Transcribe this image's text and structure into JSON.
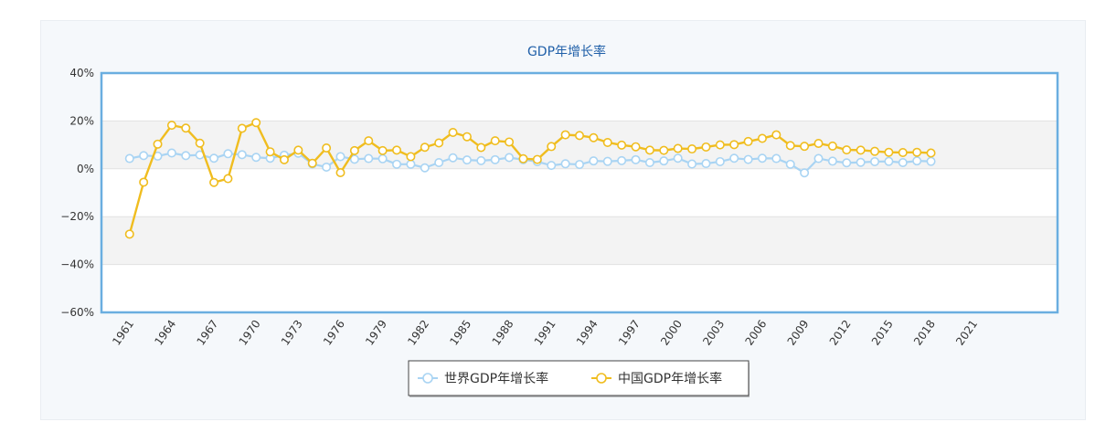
{
  "colors": {
    "world": "#a9d4f3",
    "china": "#f0bd1f",
    "frame": "#6aaee0",
    "title": "#1f5fa8",
    "band": "#f3f3f3"
  },
  "watermark": "sina",
  "chart_data": {
    "type": "line",
    "title": "GDP年增长率",
    "ylim": [
      -60,
      40
    ],
    "yticks": [
      "40%",
      "20%",
      "0%",
      "−20%",
      "−40%",
      "−60%"
    ],
    "ytick_values": [
      40,
      20,
      0,
      -20,
      -40,
      -60
    ],
    "xlim": [
      1959,
      2027
    ],
    "xticks": [
      "1961",
      "1964",
      "1967",
      "1970",
      "1973",
      "1976",
      "1979",
      "1982",
      "1985",
      "1988",
      "1991",
      "1994",
      "1997",
      "2000",
      "2003",
      "2006",
      "2009",
      "2012",
      "2015",
      "2018",
      "2021"
    ],
    "grid": true,
    "legend_position": "bottom-center",
    "x": [
      1961,
      1962,
      1963,
      1964,
      1965,
      1966,
      1967,
      1968,
      1969,
      1970,
      1971,
      1972,
      1973,
      1974,
      1975,
      1976,
      1977,
      1978,
      1979,
      1980,
      1981,
      1982,
      1983,
      1984,
      1985,
      1986,
      1987,
      1988,
      1989,
      1990,
      1991,
      1992,
      1993,
      1994,
      1995,
      1996,
      1997,
      1998,
      1999,
      2000,
      2001,
      2002,
      2003,
      2004,
      2005,
      2006,
      2007,
      2008,
      2009,
      2010,
      2011,
      2012,
      2013,
      2014,
      2015,
      2016,
      2017,
      2018
    ],
    "series": [
      {
        "name": "世界GDP年增长率",
        "values": [
          4.3,
          5.5,
          5.3,
          6.6,
          5.5,
          5.8,
          4.4,
          6.3,
          5.9,
          4.8,
          4.4,
          5.7,
          6.5,
          2.0,
          0.7,
          5.1,
          4.0,
          4.3,
          4.2,
          1.9,
          1.9,
          0.4,
          2.6,
          4.6,
          3.7,
          3.4,
          3.8,
          4.7,
          3.8,
          3.0,
          1.4,
          2.1,
          1.8,
          3.3,
          3.1,
          3.4,
          3.8,
          2.6,
          3.3,
          4.4,
          2.0,
          2.2,
          3.0,
          4.4,
          3.9,
          4.4,
          4.3,
          1.9,
          -1.7,
          4.3,
          3.2,
          2.5,
          2.7,
          3.0,
          3.1,
          2.6,
          3.3,
          3.1
        ]
      },
      {
        "name": "中国GDP年增长率",
        "values": [
          -27.3,
          -5.6,
          10.3,
          18.2,
          17.0,
          10.7,
          -5.7,
          -4.1,
          16.9,
          19.3,
          7.1,
          3.8,
          7.8,
          2.3,
          8.7,
          -1.6,
          7.6,
          11.7,
          7.6,
          7.8,
          5.1,
          9.0,
          10.8,
          15.2,
          13.4,
          8.9,
          11.7,
          11.2,
          4.2,
          3.9,
          9.3,
          14.2,
          13.9,
          13.0,
          11.0,
          9.9,
          9.2,
          7.8,
          7.7,
          8.5,
          8.3,
          9.1,
          10.0,
          10.1,
          11.4,
          12.7,
          14.2,
          9.7,
          9.4,
          10.6,
          9.5,
          7.9,
          7.8,
          7.3,
          6.9,
          6.8,
          6.9,
          6.6
        ]
      }
    ]
  }
}
